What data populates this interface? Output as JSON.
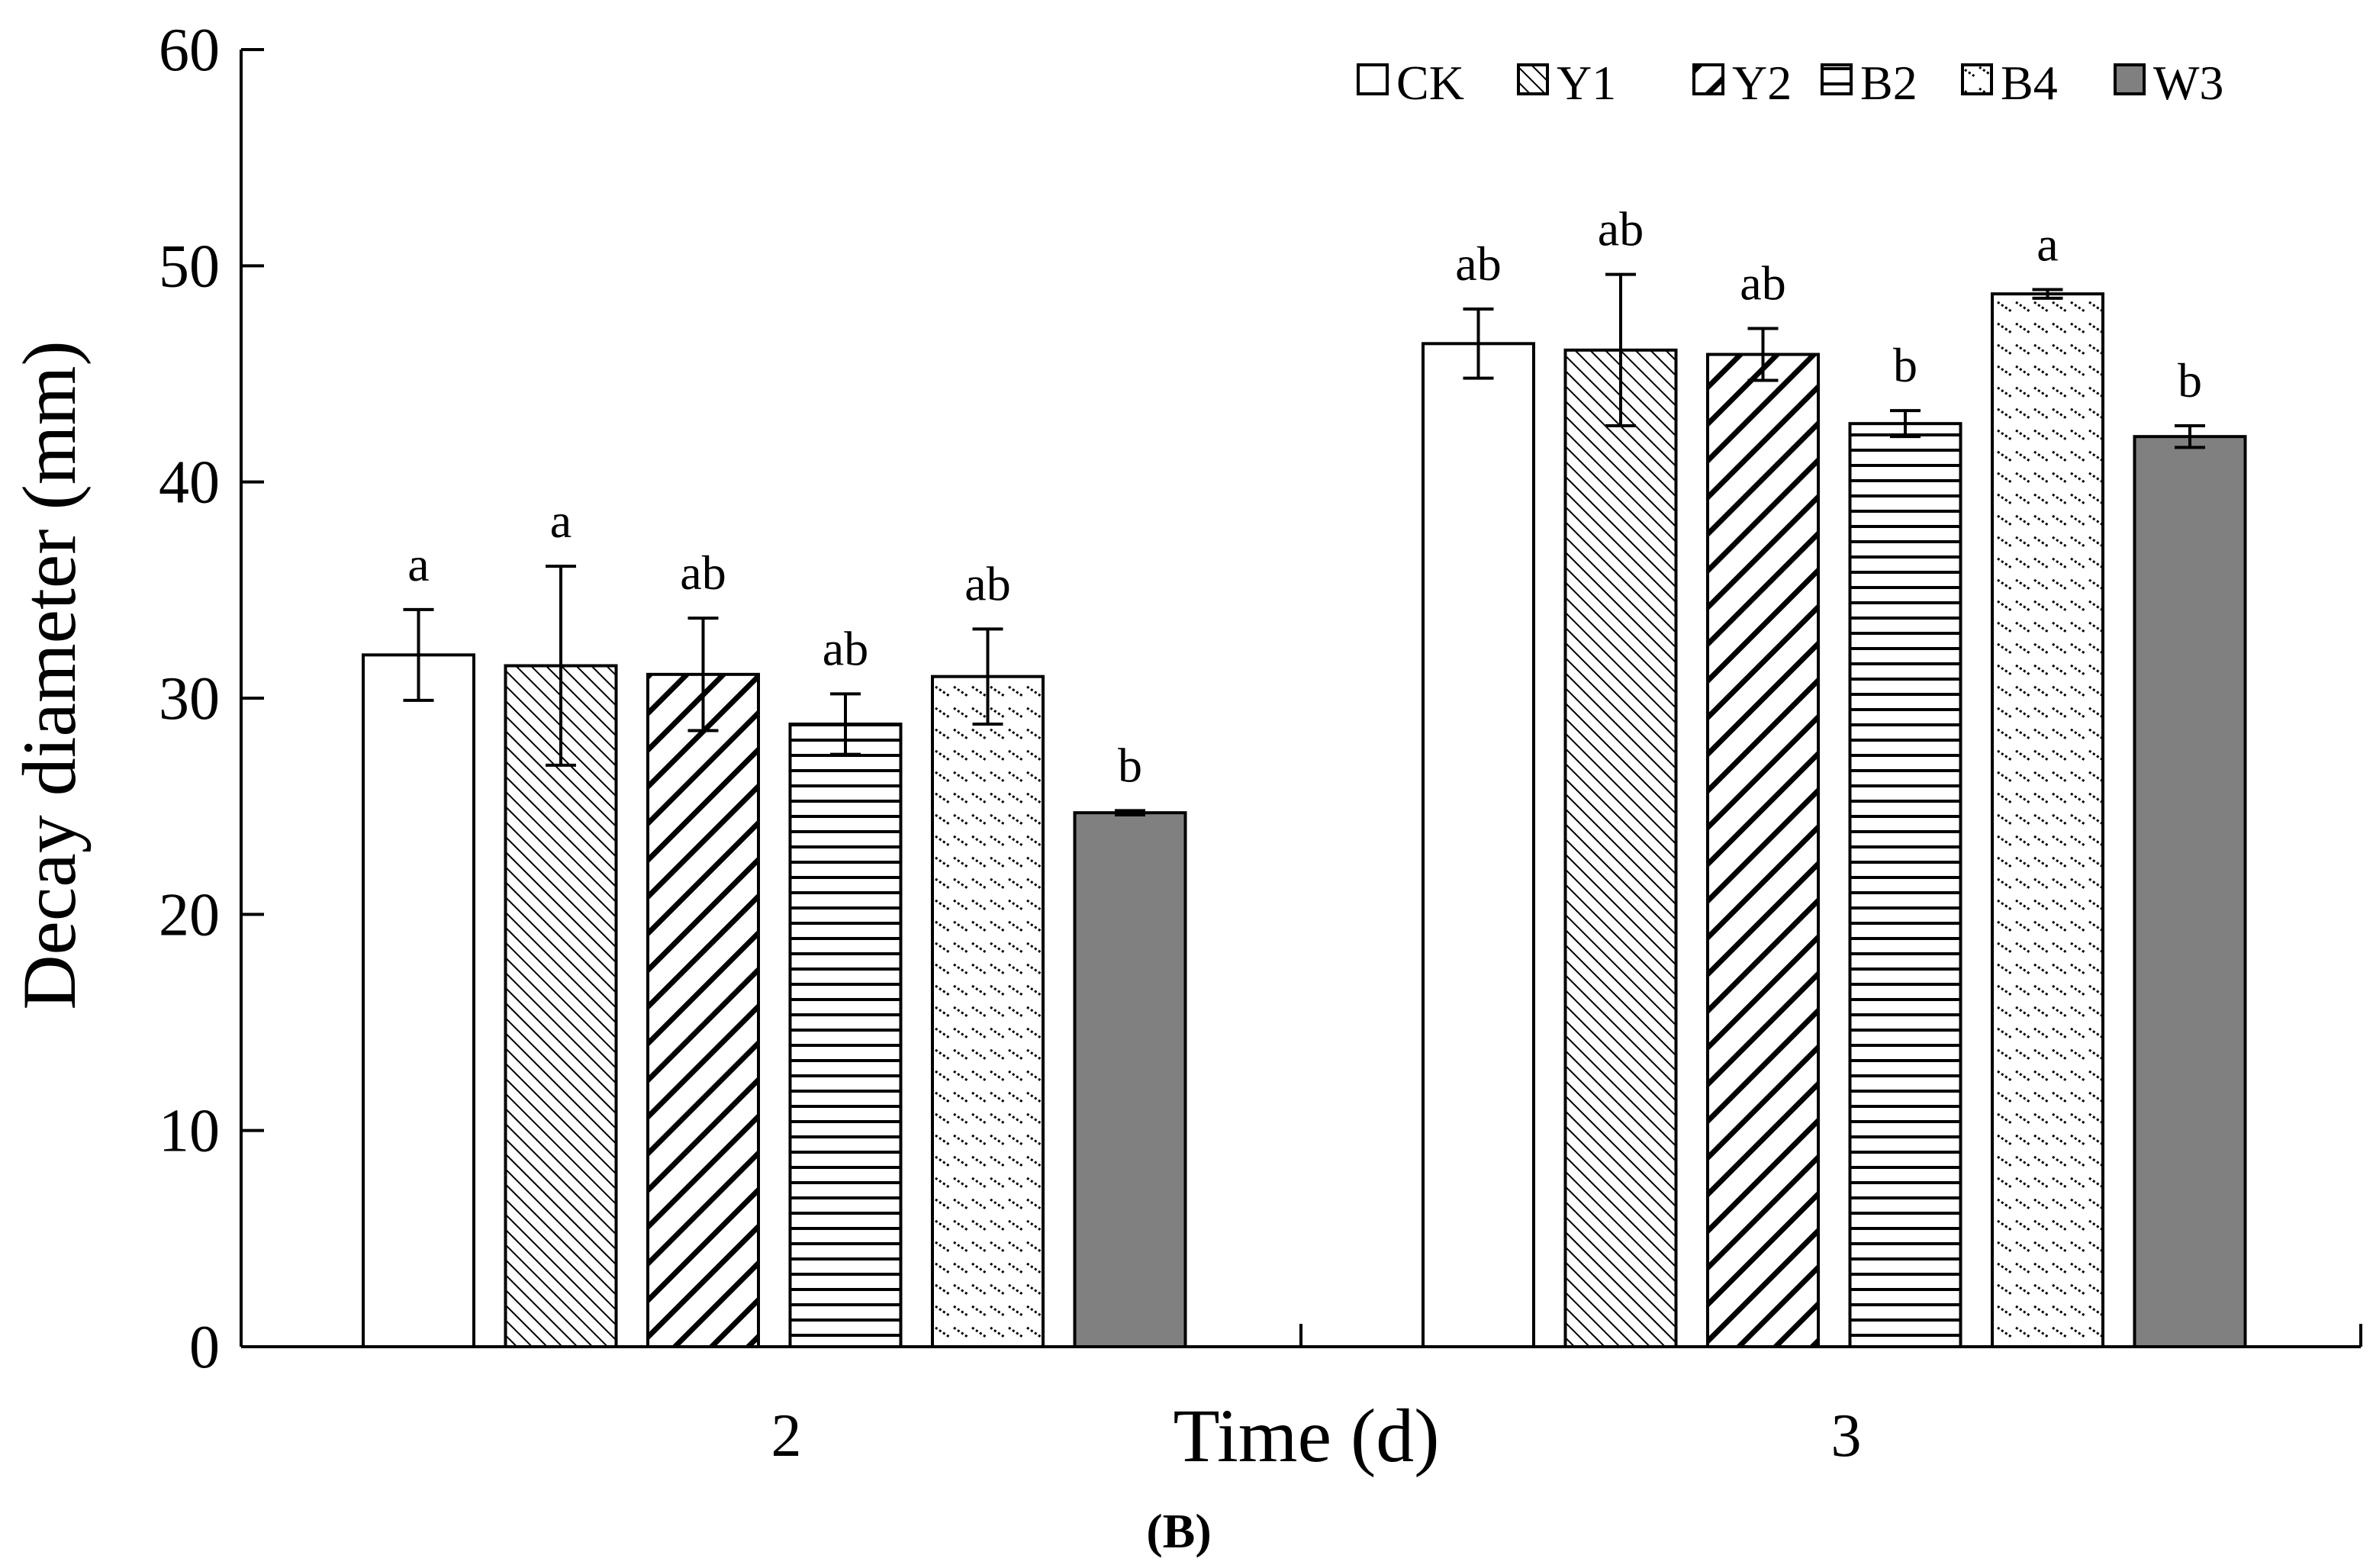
{
  "chart_data": {
    "type": "bar",
    "ylabel": "Decay diameter (mm)",
    "xlabel": "Time (d)",
    "panel_label": "(B)",
    "ylim": [
      0,
      60
    ],
    "yticks": [
      0,
      10,
      20,
      30,
      40,
      50,
      60
    ],
    "categories": [
      "2",
      "3"
    ],
    "legend_position": "top-right",
    "series": [
      {
        "name": "CK",
        "pattern": "none",
        "values": [
          32.0,
          46.4
        ],
        "errors": [
          2.1,
          1.6
        ],
        "labels": [
          "a",
          "ab"
        ]
      },
      {
        "name": "Y1",
        "pattern": "fine-diagonal",
        "values": [
          31.5,
          46.1
        ],
        "errors": [
          4.6,
          3.5
        ],
        "labels": [
          "a",
          "ab"
        ]
      },
      {
        "name": "Y2",
        "pattern": "thick-diagonal",
        "values": [
          31.1,
          45.9
        ],
        "errors": [
          2.6,
          1.2
        ],
        "labels": [
          "ab",
          "ab"
        ]
      },
      {
        "name": "B2",
        "pattern": "horizontal",
        "values": [
          28.8,
          42.7
        ],
        "errors": [
          1.4,
          0.6
        ],
        "labels": [
          "ab",
          "b"
        ]
      },
      {
        "name": "B4",
        "pattern": "dashed-diagonal",
        "values": [
          31.0,
          48.7
        ],
        "errors": [
          2.2,
          0.2
        ],
        "labels": [
          "ab",
          "a"
        ]
      },
      {
        "name": "W3",
        "pattern": "solid-gray",
        "values": [
          24.7,
          42.1
        ],
        "errors": [
          0.1,
          0.5
        ],
        "labels": [
          "b",
          "b"
        ]
      }
    ],
    "colors": {
      "axis": "#000000",
      "bar_fill": "#ffffff",
      "w3_fill": "#808080",
      "pattern": "#000000"
    }
  }
}
